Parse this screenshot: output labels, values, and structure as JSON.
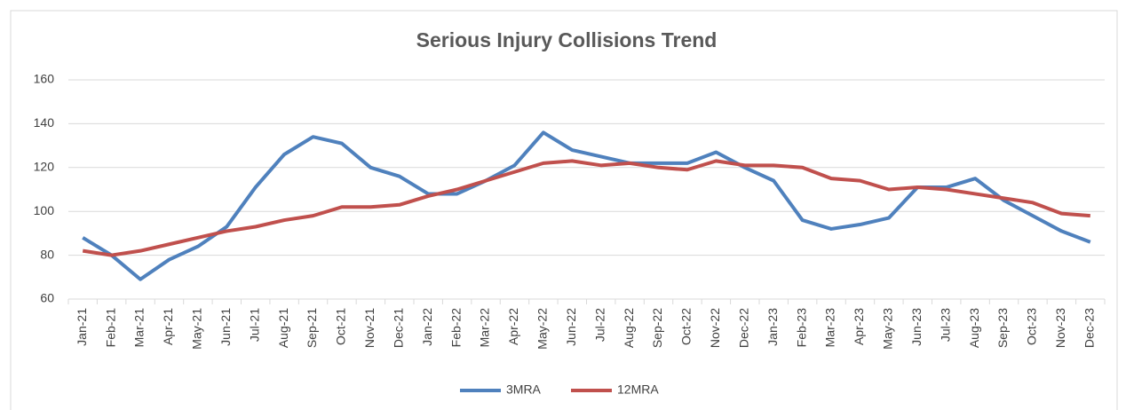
{
  "chart_data": {
    "type": "line",
    "title": "Serious Injury Collisions Trend",
    "categories": [
      "Jan-21",
      "Feb-21",
      "Mar-21",
      "Apr-21",
      "May-21",
      "Jun-21",
      "Jul-21",
      "Aug-21",
      "Sep-21",
      "Oct-21",
      "Nov-21",
      "Dec-21",
      "Jan-22",
      "Feb-22",
      "Mar-22",
      "Apr-22",
      "May-22",
      "Jun-22",
      "Jul-22",
      "Aug-22",
      "Sep-22",
      "Oct-22",
      "Nov-22",
      "Dec-22",
      "Jan-23",
      "Feb-23",
      "Mar-23",
      "Apr-23",
      "May-23",
      "Jun-23",
      "Jul-23",
      "Aug-23",
      "Sep-23",
      "Oct-23",
      "Nov-23",
      "Dec-23"
    ],
    "series": [
      {
        "name": "3MRA",
        "color": "#4f81bd",
        "values": [
          88,
          80,
          69,
          78,
          84,
          93,
          111,
          126,
          134,
          131,
          120,
          116,
          108,
          108,
          114,
          121,
          136,
          128,
          125,
          122,
          122,
          122,
          127,
          120,
          114,
          96,
          92,
          94,
          97,
          111,
          111,
          115,
          105,
          98,
          91,
          86
        ]
      },
      {
        "name": "12MRA",
        "color": "#c0504d",
        "values": [
          82,
          80,
          82,
          85,
          88,
          91,
          93,
          96,
          98,
          102,
          102,
          103,
          107,
          110,
          114,
          118,
          122,
          123,
          121,
          122,
          120,
          119,
          123,
          121,
          121,
          120,
          115,
          114,
          110,
          111,
          110,
          108,
          106,
          104,
          99,
          98
        ]
      }
    ],
    "ylim": [
      60,
      160
    ],
    "yticks": [
      60,
      80,
      100,
      120,
      140,
      160
    ],
    "grid": true,
    "legend": "bottom"
  }
}
